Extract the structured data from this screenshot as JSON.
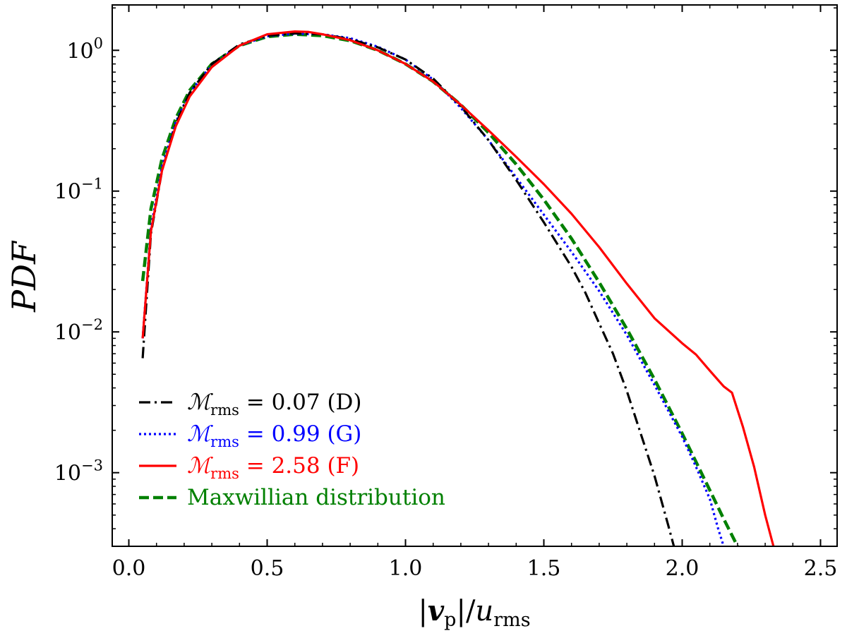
{
  "chart_data": {
    "type": "line",
    "title": "",
    "xlabel": "|v_p|/u_rms",
    "xlabel_parts": {
      "left_bar": "|",
      "var": "v",
      "var_sub": "p",
      "mid": "|/",
      "den": "u",
      "den_sub": "rms"
    },
    "ylabel": "PDF",
    "xscale": "linear",
    "yscale": "log",
    "xlim": [
      -0.06,
      2.56
    ],
    "ylim": [
      0.0003,
      2.1
    ],
    "grid": false,
    "legend_position": "lower-left",
    "x_ticks": [
      {
        "value": 0.0,
        "label": "0.0"
      },
      {
        "value": 0.5,
        "label": "0.5"
      },
      {
        "value": 1.0,
        "label": "1.0"
      },
      {
        "value": 1.5,
        "label": "1.5"
      },
      {
        "value": 2.0,
        "label": "2.0"
      },
      {
        "value": 2.5,
        "label": "2.5"
      }
    ],
    "y_ticks": [
      {
        "value": 1,
        "base": "10",
        "exp": "0"
      },
      {
        "value": 0.1,
        "base": "10",
        "exp": "−1"
      },
      {
        "value": 0.01,
        "base": "10",
        "exp": "−2"
      },
      {
        "value": 0.001,
        "base": "10",
        "exp": "−3"
      }
    ],
    "series": [
      {
        "name": "M_rms = 0.07 (D)",
        "legend": {
          "symbol": "ℳ",
          "sub": "rms",
          "text": " = 0.07 (D)"
        },
        "color": "#000000",
        "style": "dashdot",
        "x": [
          0.05,
          0.08,
          0.12,
          0.17,
          0.22,
          0.3,
          0.4,
          0.5,
          0.6,
          0.7,
          0.8,
          0.9,
          1.0,
          1.1,
          1.2,
          1.3,
          1.4,
          1.5,
          1.6,
          1.65,
          1.7,
          1.75,
          1.8,
          1.85,
          1.9,
          1.95,
          1.97
        ],
        "y": [
          0.0065,
          0.05,
          0.14,
          0.3,
          0.5,
          0.8,
          1.1,
          1.27,
          1.32,
          1.3,
          1.2,
          1.05,
          0.86,
          0.63,
          0.4,
          0.23,
          0.12,
          0.06,
          0.029,
          0.019,
          0.0115,
          0.007,
          0.0038,
          0.0019,
          0.00095,
          0.00042,
          0.0003
        ]
      },
      {
        "name": "M_rms = 0.99 (G)",
        "legend": {
          "symbol": "ℳ",
          "sub": "rms",
          "text": " = 0.99 (G)"
        },
        "color": "#0000ff",
        "style": "dotted",
        "x": [
          0.05,
          0.08,
          0.12,
          0.17,
          0.22,
          0.3,
          0.4,
          0.5,
          0.6,
          0.7,
          0.8,
          0.9,
          1.0,
          1.1,
          1.2,
          1.3,
          1.4,
          1.5,
          1.6,
          1.7,
          1.8,
          1.9,
          2.0,
          2.05,
          2.1,
          2.13,
          2.15
        ],
        "y": [
          0.009,
          0.055,
          0.15,
          0.31,
          0.5,
          0.79,
          1.08,
          1.26,
          1.31,
          1.3,
          1.22,
          1.06,
          0.86,
          0.62,
          0.39,
          0.23,
          0.125,
          0.068,
          0.037,
          0.0195,
          0.0095,
          0.0042,
          0.0018,
          0.0011,
          0.00065,
          0.0004,
          0.0003
        ]
      },
      {
        "name": "M_rms = 2.58 (F)",
        "legend": {
          "symbol": "ℳ",
          "sub": "rms",
          "text": " = 2.58 (F)"
        },
        "color": "#ff0000",
        "style": "solid",
        "x": [
          0.05,
          0.08,
          0.12,
          0.17,
          0.22,
          0.3,
          0.4,
          0.5,
          0.6,
          0.65,
          0.7,
          0.8,
          0.9,
          1.0,
          1.1,
          1.2,
          1.3,
          1.4,
          1.5,
          1.6,
          1.7,
          1.8,
          1.9,
          2.0,
          2.05,
          2.1,
          2.15,
          2.18,
          2.22,
          2.26,
          2.3,
          2.33
        ],
        "y": [
          0.009,
          0.052,
          0.14,
          0.29,
          0.47,
          0.76,
          1.08,
          1.3,
          1.36,
          1.35,
          1.3,
          1.18,
          1.0,
          0.8,
          0.6,
          0.41,
          0.27,
          0.175,
          0.112,
          0.069,
          0.04,
          0.022,
          0.0125,
          0.0083,
          0.0069,
          0.0053,
          0.0041,
          0.0037,
          0.0021,
          0.0011,
          0.0005,
          0.0003
        ]
      },
      {
        "name": "Maxwillian distribution",
        "legend": {
          "symbol": "",
          "sub": "",
          "text": "Maxwillian distribution"
        },
        "color": "#008000",
        "style": "dashed",
        "x": [
          0.05,
          0.08,
          0.12,
          0.17,
          0.22,
          0.3,
          0.4,
          0.5,
          0.6,
          0.7,
          0.8,
          0.9,
          1.0,
          1.1,
          1.2,
          1.3,
          1.4,
          1.5,
          1.6,
          1.7,
          1.8,
          1.9,
          2.0,
          2.1,
          2.15,
          2.2
        ],
        "y": [
          0.023,
          0.075,
          0.17,
          0.33,
          0.52,
          0.8,
          1.08,
          1.25,
          1.3,
          1.27,
          1.17,
          1.0,
          0.8,
          0.6,
          0.41,
          0.26,
          0.155,
          0.087,
          0.046,
          0.0225,
          0.0105,
          0.0046,
          0.0019,
          0.00075,
          0.00047,
          0.0003
        ]
      }
    ]
  }
}
